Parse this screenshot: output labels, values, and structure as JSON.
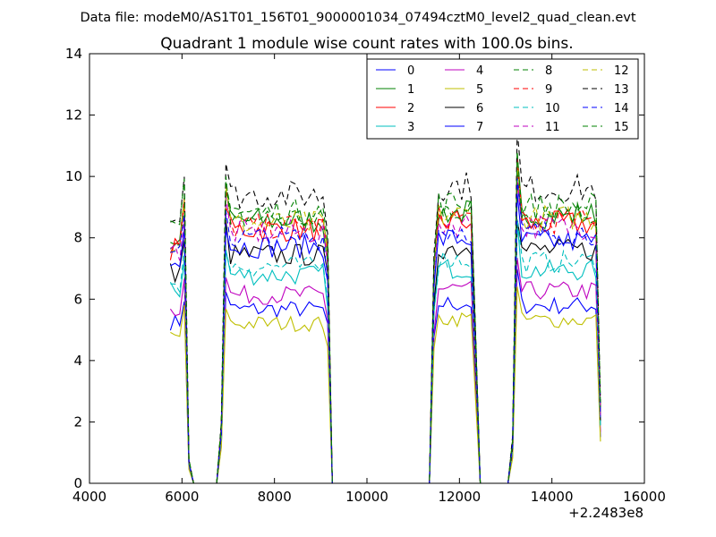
{
  "chart_data": {
    "type": "line",
    "suptitle": "Data file: modeM0/AS1T01_156T01_9000001034_07494cztM0_level2_quad_clean.evt",
    "title": "Quadrant 1 module wise count rates with 100.0s bins.",
    "xlabel": "",
    "ylabel": "",
    "xlim": [
      4000,
      16000
    ],
    "ylim": [
      0,
      14
    ],
    "x_ticks": [
      4000,
      6000,
      8000,
      10000,
      12000,
      14000,
      16000
    ],
    "y_ticks": [
      0,
      2,
      4,
      6,
      8,
      10,
      12,
      14
    ],
    "x_offset_label": "+2.2483e8",
    "grid": false,
    "legend": {
      "placement": "top-right",
      "columns": 4
    },
    "x": [
      5750,
      5850,
      5950,
      6050,
      6150,
      6250,
      6350,
      6450,
      6550,
      6650,
      6750,
      6850,
      6950,
      7050,
      7150,
      7250,
      7350,
      7450,
      7550,
      7650,
      7750,
      7850,
      7950,
      8050,
      8150,
      8250,
      8350,
      8450,
      8550,
      8650,
      8750,
      8850,
      8950,
      9050,
      9150,
      9250,
      9350,
      9450,
      9550,
      9650,
      9750,
      9850,
      9950,
      10050,
      10150,
      10250,
      10350,
      10450,
      10550,
      10650,
      10750,
      10850,
      10950,
      11050,
      11150,
      11250,
      11350,
      11450,
      11550,
      11650,
      11750,
      11850,
      11950,
      12050,
      12150,
      12250,
      12350,
      12450,
      12550,
      12650,
      12750,
      12850,
      12950,
      13050,
      13150,
      13250,
      13350,
      13450,
      13550,
      13650,
      13750,
      13850,
      13950,
      14050,
      14150,
      14250,
      14350,
      14450,
      14550,
      14650,
      14750,
      14850,
      14950,
      15050
    ],
    "series": [
      {
        "name": "0",
        "color": "#0000ff",
        "dash": "solid",
        "level": 6.1
      },
      {
        "name": "1",
        "color": "#008000",
        "dash": "solid",
        "level": 9.2
      },
      {
        "name": "2",
        "color": "#ff0000",
        "dash": "solid",
        "level": 8.9
      },
      {
        "name": "3",
        "color": "#00bfbf",
        "dash": "solid",
        "level": 7.3
      },
      {
        "name": "4",
        "color": "#bf00bf",
        "dash": "solid",
        "level": 6.6
      },
      {
        "name": "5",
        "color": "#bfbf00",
        "dash": "solid",
        "level": 5.6
      },
      {
        "name": "6",
        "color": "#000000",
        "dash": "solid",
        "level": 8.0
      },
      {
        "name": "7",
        "color": "#0000ff",
        "dash": "solid",
        "level": 8.3
      },
      {
        "name": "8",
        "color": "#008000",
        "dash": "dashed",
        "level": 9.3
      },
      {
        "name": "9",
        "color": "#ff0000",
        "dash": "dashed",
        "level": 9.0
      },
      {
        "name": "10",
        "color": "#00bfbf",
        "dash": "dashed",
        "level": 7.6
      },
      {
        "name": "11",
        "color": "#bf00bf",
        "dash": "dashed",
        "level": 8.8
      },
      {
        "name": "12",
        "color": "#bfbf00",
        "dash": "dashed",
        "level": 9.1
      },
      {
        "name": "13",
        "color": "#000000",
        "dash": "dashed",
        "level": 10.1
      },
      {
        "name": "14",
        "color": "#0000ff",
        "dash": "dashed",
        "level": 8.6
      },
      {
        "name": "15",
        "color": "#008000",
        "dash": "dashed",
        "level": 9.5
      }
    ]
  }
}
